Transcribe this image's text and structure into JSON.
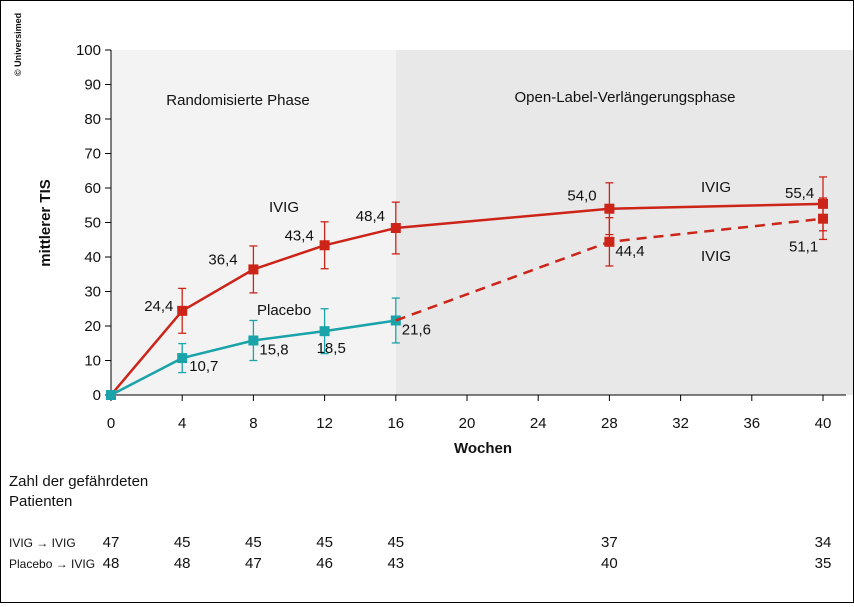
{
  "copyright": "© Universimed",
  "chart_data": {
    "type": "line",
    "xlabel": "Wochen",
    "ylabel": "mittlerer TIS",
    "ylim": [
      0,
      100
    ],
    "yticks": [
      0,
      10,
      20,
      30,
      40,
      50,
      60,
      70,
      80,
      90,
      100
    ],
    "xticks": [
      0,
      4,
      8,
      12,
      16,
      20,
      24,
      28,
      32,
      36,
      40
    ],
    "phases": [
      {
        "label": "Randomisierte Phase",
        "from": 0,
        "to": 16,
        "color": "#f3f3f3"
      },
      {
        "label": "Open-Label-Verlängerungsphase",
        "from": 16,
        "to": 40,
        "color": "#e8e8e8"
      }
    ],
    "series": [
      {
        "name": "IVIG",
        "color": "#cc2418",
        "x": [
          0,
          4,
          8,
          12,
          16,
          28,
          40
        ],
        "y": [
          0,
          24.4,
          36.4,
          43.4,
          48.4,
          54.0,
          55.4
        ],
        "err": [
          0,
          6.5,
          6.8,
          6.8,
          7.5,
          7.5,
          7.8
        ],
        "labels": [
          "",
          "24,4",
          "36,4",
          "43,4",
          "48,4",
          "54,0",
          "55,4"
        ]
      },
      {
        "name": "Placebo",
        "color": "#1aa3a8",
        "x": [
          0,
          4,
          8,
          12,
          16
        ],
        "y": [
          0,
          10.7,
          15.8,
          18.5,
          21.6
        ],
        "err": [
          0,
          4.2,
          5.8,
          6.5,
          6.5
        ],
        "labels": [
          "",
          "10,7",
          "15,8",
          "18,5",
          "21,6"
        ]
      },
      {
        "name": "IVIG",
        "color": "#cc2418",
        "dashed": true,
        "x": [
          16,
          28,
          40
        ],
        "y": [
          21.6,
          44.4,
          51.1
        ],
        "err": [
          0,
          7.0,
          6.0
        ],
        "labels": [
          "",
          "44,4",
          "51,1"
        ]
      }
    ],
    "annotations": [
      "IVIG",
      "Placebo",
      "IVIG",
      "IVIG"
    ]
  },
  "risk_table": {
    "title": "Zahl der gefährdeten Patienten",
    "title_line1": "Zahl der gefährdeten",
    "title_line2": "Patienten",
    "weeks": [
      0,
      4,
      8,
      12,
      16,
      28,
      40
    ],
    "rows": [
      {
        "label": "IVIG → IVIG",
        "values": [
          "47",
          "45",
          "45",
          "45",
          "45",
          "37",
          "34"
        ]
      },
      {
        "label": "Placebo → IVIG",
        "values": [
          "48",
          "48",
          "47",
          "46",
          "43",
          "40",
          "35"
        ]
      }
    ]
  }
}
